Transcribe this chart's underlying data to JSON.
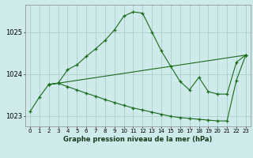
{
  "title": "Graphe pression niveau de la mer (hPa)",
  "background_color": "#ceeaea",
  "grid_color": "#aacece",
  "line_color": "#1a6b1a",
  "x_labels": [
    "0",
    "1",
    "2",
    "3",
    "4",
    "5",
    "6",
    "7",
    "8",
    "9",
    "10",
    "11",
    "12",
    "13",
    "14",
    "15",
    "16",
    "17",
    "18",
    "19",
    "20",
    "21",
    "22",
    "23"
  ],
  "xlim": [
    -0.5,
    23.5
  ],
  "ylim": [
    1022.75,
    1025.65
  ],
  "yticks": [
    1023,
    1024,
    1025
  ],
  "series1_x": [
    0,
    1,
    2,
    3,
    4,
    5,
    6,
    7,
    8,
    9,
    10,
    11,
    12,
    13,
    14,
    15,
    16,
    17,
    18,
    19,
    20,
    21,
    22,
    23
  ],
  "series1_y": [
    1023.1,
    1023.45,
    1023.75,
    1023.78,
    1024.1,
    1024.22,
    1024.42,
    1024.6,
    1024.8,
    1025.05,
    1025.38,
    1025.48,
    1025.45,
    1025.0,
    1024.55,
    1024.18,
    1023.82,
    1023.62,
    1023.92,
    1023.58,
    1023.52,
    1023.52,
    1024.28,
    1024.45
  ],
  "series2_x": [
    2,
    3,
    4,
    5,
    6,
    7,
    8,
    9,
    10,
    11,
    12,
    13,
    14,
    15,
    16,
    17,
    18,
    19,
    20,
    21,
    22,
    23
  ],
  "series2_y": [
    1023.75,
    1023.78,
    1023.7,
    1023.62,
    1023.54,
    1023.47,
    1023.39,
    1023.32,
    1023.25,
    1023.19,
    1023.14,
    1023.09,
    1023.04,
    1022.99,
    1022.96,
    1022.94,
    1022.92,
    1022.9,
    1022.88,
    1022.88,
    1023.85,
    1024.45
  ],
  "series3_x": [
    2,
    3,
    23
  ],
  "series3_y": [
    1023.75,
    1023.78,
    1024.45
  ]
}
